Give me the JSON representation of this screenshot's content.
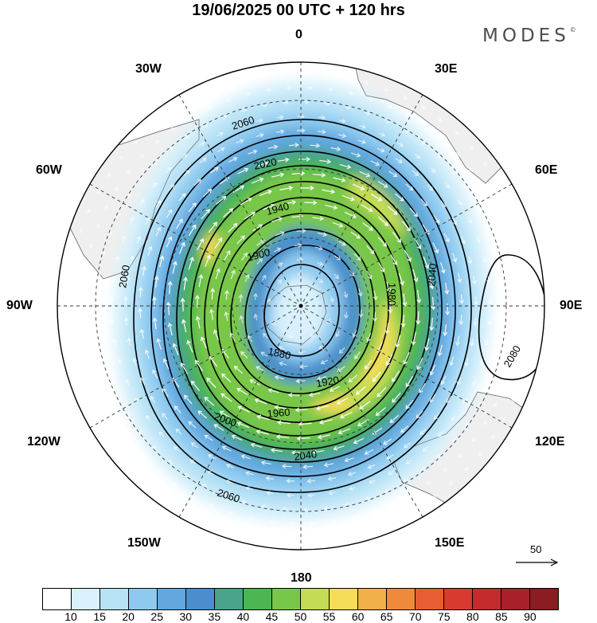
{
  "title": "19/06/2025  00 UTC  + 120 hrs",
  "brand": "MODES",
  "brand_mark": "©",
  "longitude_labels": {
    "lon_0": "0",
    "lon_30e": "30E",
    "lon_60e": "60E",
    "lon_90e": "90E",
    "lon_120e": "120E",
    "lon_150e": "150E",
    "lon_180": "180",
    "lon_150w": "150W",
    "lon_120w": "120W",
    "lon_90w": "90W",
    "lon_60w": "60W",
    "lon_30w": "30W"
  },
  "contour_labels": [
    "2060",
    "2020",
    "1980",
    "1940",
    "1900",
    "1880",
    "1920",
    "1960",
    "2000",
    "2040",
    "2080"
  ],
  "vector_scale": {
    "value": "50"
  },
  "colorbar": {
    "colors": [
      "#ffffff",
      "#d8f1fb",
      "#b7e2f6",
      "#8ecaf0",
      "#62a8df",
      "#4a8fcb",
      "#4aa38a",
      "#4db552",
      "#79c74a",
      "#c4dc55",
      "#f7dc5a",
      "#f2b04b",
      "#ef8a3c",
      "#e85d33",
      "#d93a2f",
      "#c42b2d",
      "#a8202a",
      "#8a1c22"
    ],
    "ticks": [
      "10",
      "15",
      "20",
      "25",
      "30",
      "35",
      "40",
      "45",
      "50",
      "55",
      "60",
      "65",
      "70",
      "75",
      "80",
      "85",
      "90"
    ]
  }
}
